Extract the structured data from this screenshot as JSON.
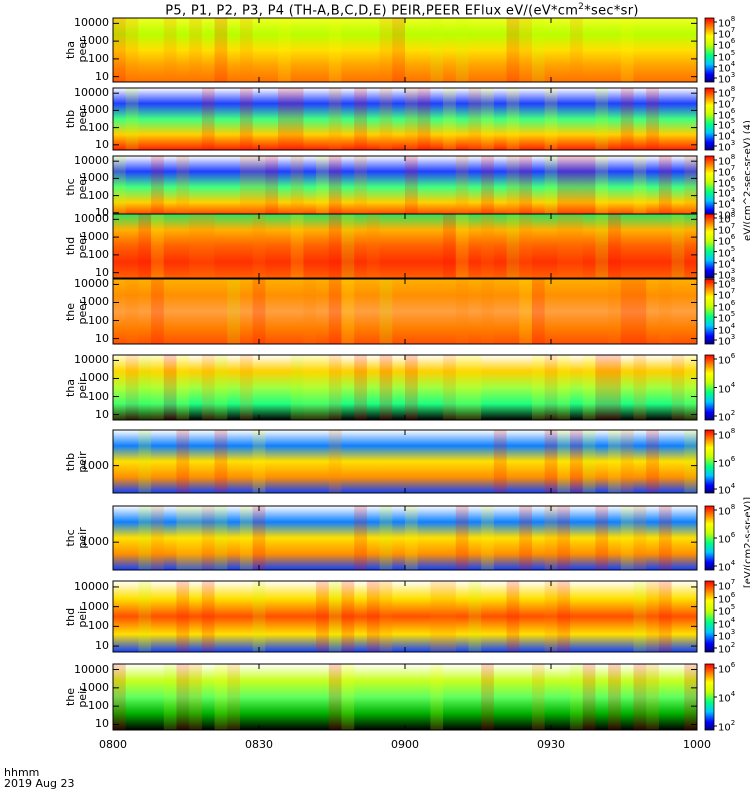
{
  "title": {
    "prefix": "P5, P1, P2, P3, P4 (TH-A,B,C,D,E) PEIR,PEER EFlux eV/(eV*cm",
    "sup": "2",
    "suffix": "*sec*sr)"
  },
  "x_axis": {
    "ticks": [
      "0800",
      "0830",
      "0900",
      "0930",
      "1000"
    ],
    "corner_label": "hhmm",
    "date_label": "2019 Aug 23"
  },
  "colorbar_units": {
    "peer": "eV/(cm^2-sec-sr-eV) (4)",
    "peir": "[eV/(cm2-s-sr-eV)]"
  },
  "chart_data": [
    {
      "type": "heatmap",
      "probe": "tha",
      "species": "peer",
      "ylabel_1": "tha",
      "ylabel_2": "peer",
      "yscale": "log",
      "ylim": [
        5,
        20000
      ],
      "yticks": [
        "10000",
        "1000",
        "100",
        "10"
      ],
      "colorbar_ticks": [
        "10^8",
        "10^7",
        "10^6",
        "10^5",
        "10^4",
        "10^3"
      ],
      "xlim": [
        "0800",
        "1000"
      ]
    },
    {
      "type": "heatmap",
      "probe": "thb",
      "species": "peer",
      "ylabel_1": "thb",
      "ylabel_2": "peer",
      "yscale": "log",
      "ylim": [
        5,
        20000
      ],
      "yticks": [
        "10000",
        "1000",
        "100",
        "10"
      ],
      "colorbar_ticks": [
        "10^8",
        "10^7",
        "10^6",
        "10^5",
        "10^4",
        "10^3"
      ],
      "xlim": [
        "0800",
        "1000"
      ]
    },
    {
      "type": "heatmap",
      "probe": "thc",
      "species": "peer",
      "ylabel_1": "thc",
      "ylabel_2": "peer",
      "yscale": "log",
      "ylim": [
        5,
        20000
      ],
      "yticks": [
        "10000",
        "1000",
        "100",
        "10"
      ],
      "colorbar_ticks": [
        "10^8",
        "10^7",
        "10^6",
        "10^5",
        "10^4",
        "10^3"
      ],
      "xlim": [
        "0800",
        "1000"
      ]
    },
    {
      "type": "heatmap",
      "probe": "thd",
      "species": "peer",
      "ylabel_1": "thd",
      "ylabel_2": "peer",
      "yscale": "log",
      "ylim": [
        5,
        20000
      ],
      "yticks": [
        "10000",
        "1000",
        "100",
        "10"
      ],
      "colorbar_ticks": [
        "10^8",
        "10^7",
        "10^6",
        "10^5",
        "10^4",
        "10^3"
      ],
      "xlim": [
        "0800",
        "1000"
      ]
    },
    {
      "type": "heatmap",
      "probe": "the",
      "species": "peer",
      "ylabel_1": "the",
      "ylabel_2": "peer",
      "yscale": "log",
      "ylim": [
        5,
        20000
      ],
      "yticks": [
        "10000",
        "1000",
        "100",
        "10"
      ],
      "colorbar_ticks": [
        "10^8",
        "10^7",
        "10^6",
        "10^5",
        "10^4",
        "10^3"
      ],
      "xlim": [
        "0800",
        "1000"
      ]
    },
    {
      "type": "heatmap",
      "probe": "tha",
      "species": "peir",
      "ylabel_1": "tha",
      "ylabel_2": "peir",
      "yscale": "log",
      "ylim": [
        5,
        20000
      ],
      "yticks": [
        "10000",
        "1000",
        "100",
        "10"
      ],
      "colorbar_ticks": [
        "10^6",
        "10^4",
        "10^2"
      ],
      "xlim": [
        "0800",
        "1000"
      ]
    },
    {
      "type": "heatmap",
      "probe": "thb",
      "species": "peir",
      "ylabel_1": "thb",
      "ylabel_2": "peir",
      "yscale": "log",
      "ylim": [
        100,
        20000
      ],
      "yticks": [
        "1000"
      ],
      "colorbar_ticks": [
        "10^8",
        "10^6",
        "10^4"
      ],
      "xlim": [
        "0800",
        "1000"
      ]
    },
    {
      "type": "heatmap",
      "probe": "thc",
      "species": "peir",
      "ylabel_1": "thc",
      "ylabel_2": "peir",
      "yscale": "log",
      "ylim": [
        100,
        20000
      ],
      "yticks": [
        "1000"
      ],
      "colorbar_ticks": [
        "10^8",
        "10^6",
        "10^4"
      ],
      "xlim": [
        "0800",
        "1000"
      ]
    },
    {
      "type": "heatmap",
      "probe": "thd",
      "species": "peir",
      "ylabel_1": "thd",
      "ylabel_2": "peir",
      "yscale": "log",
      "ylim": [
        5,
        20000
      ],
      "yticks": [
        "10000",
        "1000",
        "100",
        "10"
      ],
      "colorbar_ticks": [
        "10^7",
        "10^6",
        "10^5",
        "10^4",
        "10^3",
        "10^2"
      ],
      "xlim": [
        "0800",
        "1000"
      ]
    },
    {
      "type": "heatmap",
      "probe": "the",
      "species": "peir",
      "ylabel_1": "the",
      "ylabel_2": "peir",
      "yscale": "log",
      "ylim": [
        5,
        20000
      ],
      "yticks": [
        "10000",
        "1000",
        "100",
        "10"
      ],
      "colorbar_ticks": [
        "10^6",
        "10^4",
        "10^2"
      ],
      "xlim": [
        "0800",
        "1000"
      ]
    }
  ]
}
